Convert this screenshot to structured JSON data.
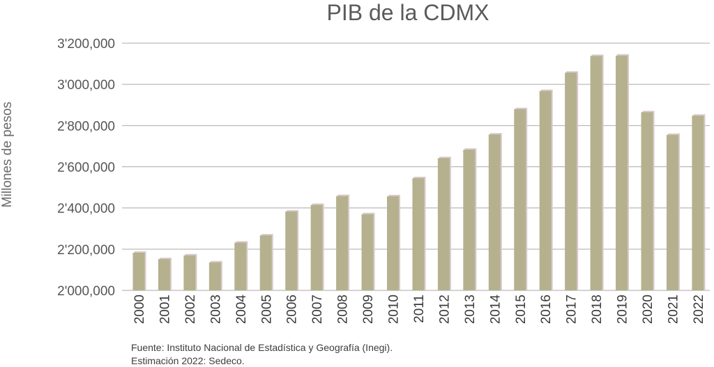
{
  "chart_data": {
    "type": "bar",
    "title": "PIB de la CDMX",
    "ylabel": "Millones de pesos",
    "xlabel": "",
    "categories": [
      "2000",
      "2001",
      "2002",
      "2003",
      "2004",
      "2005",
      "2006",
      "2007",
      "2008",
      "2009",
      "2010",
      "2011",
      "2012",
      "2013",
      "2014",
      "2015",
      "2016",
      "2017",
      "2018",
      "2019",
      "2020",
      "2021",
      "2022"
    ],
    "values": [
      2183000,
      2152000,
      2170000,
      2136000,
      2232000,
      2267000,
      2383000,
      2415000,
      2458000,
      2370000,
      2457000,
      2545000,
      2642000,
      2683000,
      2757000,
      2880000,
      2968000,
      3057000,
      3138000,
      3140000,
      2865000,
      2755000,
      2848000
    ],
    "ylim": [
      2000000,
      3200000
    ],
    "yticks": [
      2000000,
      2200000,
      2400000,
      2600000,
      2800000,
      3000000,
      3200000
    ],
    "ytick_labels": [
      "2'000,000",
      "2'200,000",
      "2'400,000",
      "2'600,000",
      "2'800,000",
      "3'000,000",
      "3'200,000"
    ],
    "grid": true,
    "legend": "none",
    "bar_color": "#b5b18e",
    "bar_shadow_color": "#d9c9cc",
    "grid_color": "#aaaaaa"
  },
  "source": {
    "line1": "Fuente: Instituto Nacional de Estadística y Geografía (Inegi).",
    "line2": "Estimación 2022: Sedeco."
  }
}
